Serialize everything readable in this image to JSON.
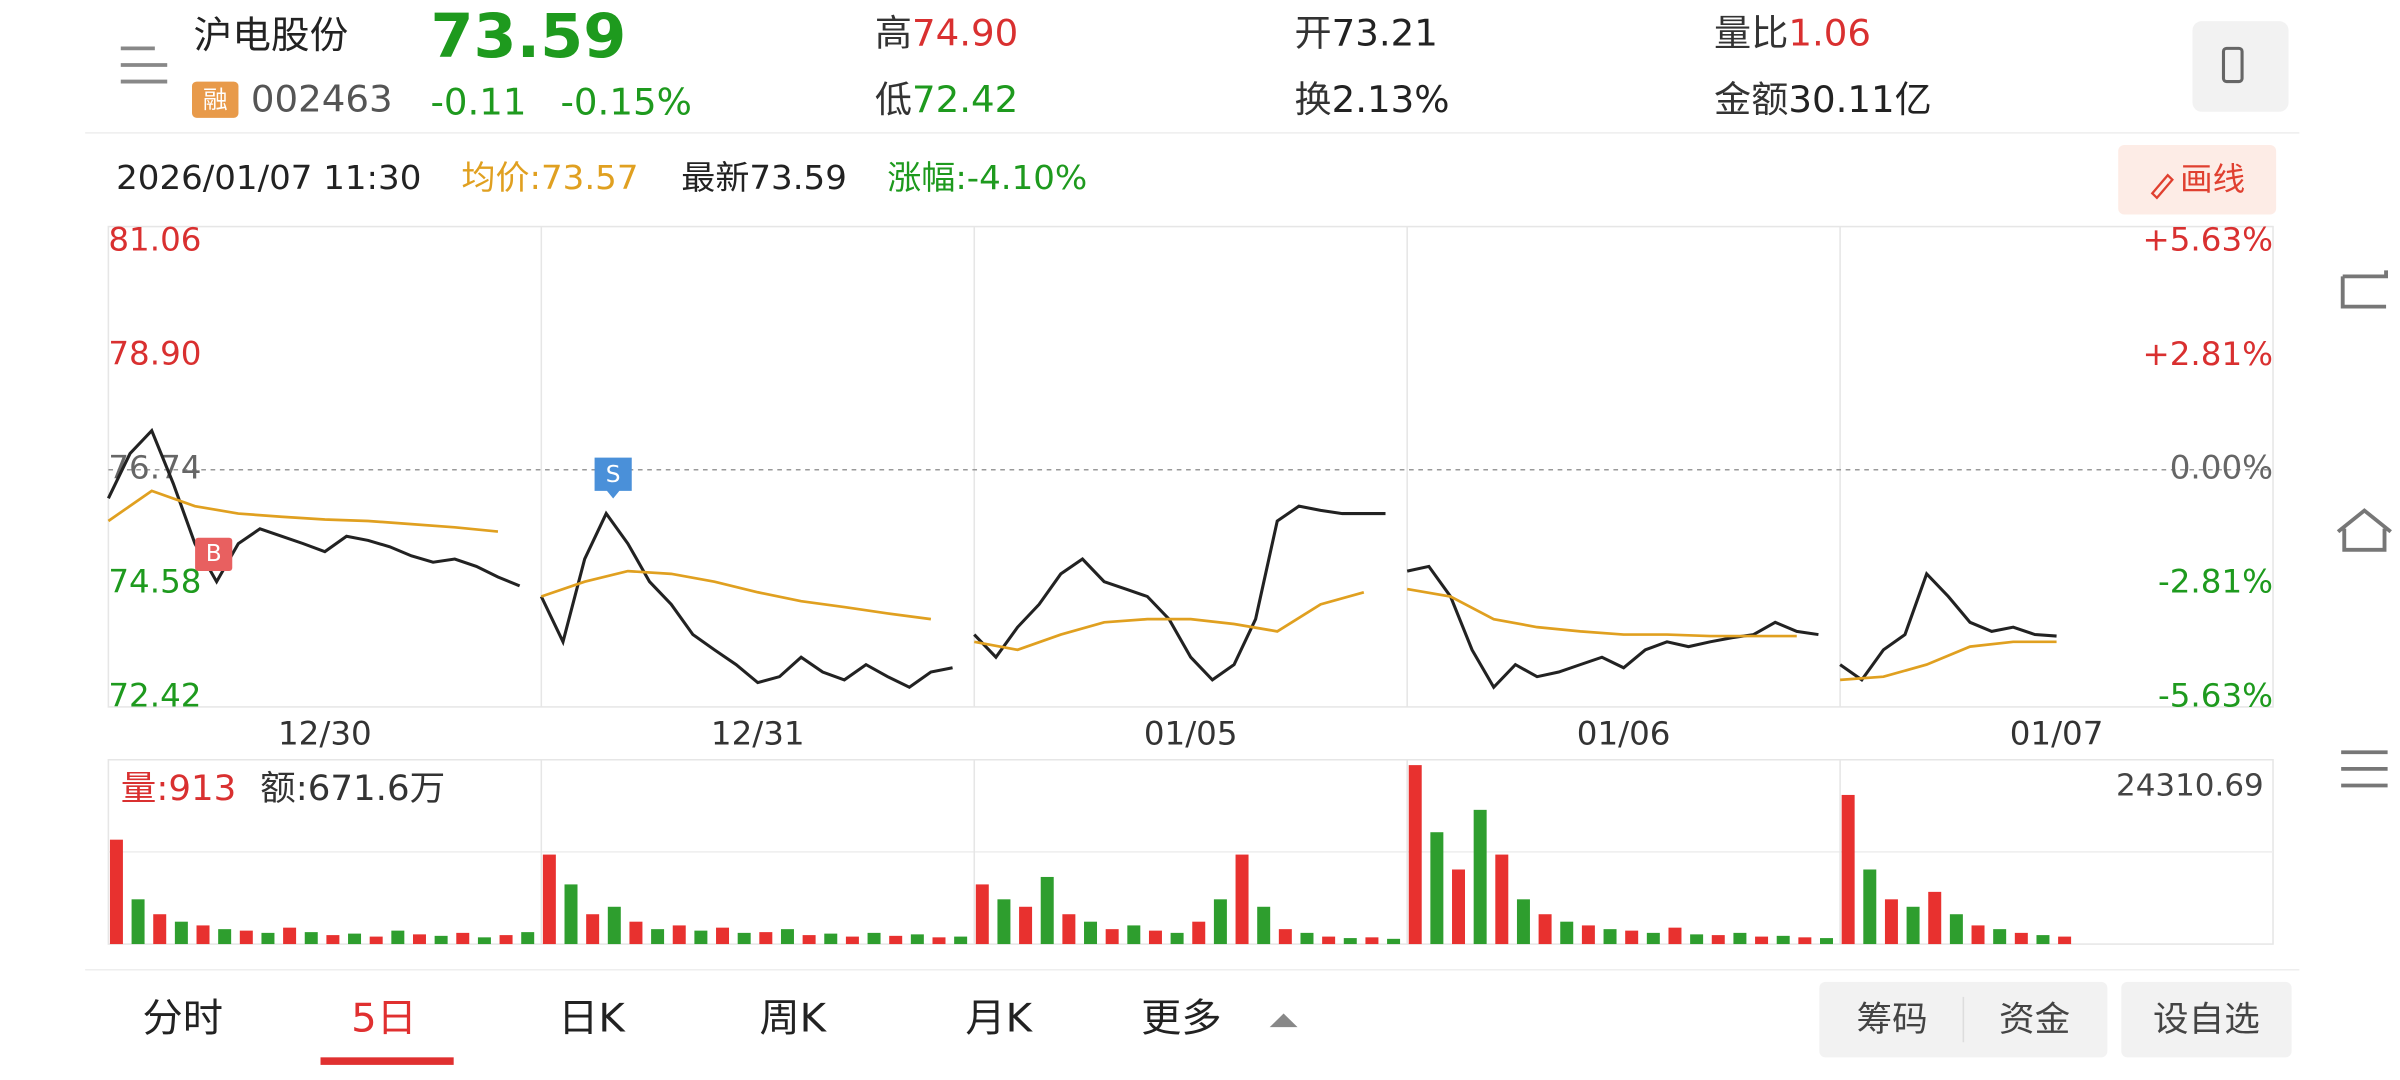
{
  "header": {
    "name": "沪电股份",
    "price": "73.59",
    "margin_badge": "融",
    "code": "002463",
    "change": "-0.11",
    "change_pct": "-0.15%",
    "stats": [
      {
        "label": "高",
        "value": "74.90",
        "color": "#d93030"
      },
      {
        "label": "开",
        "value": "73.21",
        "color": "#222222"
      },
      {
        "label": "量比",
        "value": "1.06",
        "color": "#d93030"
      },
      {
        "label": "低",
        "value": "72.42",
        "color": "#1e9a1e"
      },
      {
        "label": "换",
        "value": "2.13%",
        "color": "#222222"
      },
      {
        "label": "金额",
        "value": "30.11亿",
        "color": "#222222"
      }
    ]
  },
  "info_bar": {
    "time": "2026/01/07 11:30",
    "avg": "均价:73.57",
    "latest": "最新73.59",
    "change": "涨幅:-4.10%",
    "draw_button": "画线"
  },
  "trade_marks": [
    "S",
    "B"
  ],
  "chart_data": [
    {
      "type": "line",
      "xlim": [
        0,
        5
      ],
      "ylim": [
        72.42,
        81.06
      ],
      "yticks": [
        81.06,
        {
          "value": 78.9,
          "label": "78.90"
        },
        76.74,
        74.58,
        72.42
      ],
      "y2lim": [
        -5.63,
        5.63
      ],
      "y2ticks": [
        {
          "value": 5.63,
          "label": "+5.63%"
        },
        {
          "value": 2.81,
          "label": "+2.81%"
        },
        {
          "value": 0,
          "label": "0.00%"
        },
        {
          "value": -2.81,
          "label": "-2.81%"
        },
        {
          "value": -5.63,
          "label": "-5.63%"
        }
      ],
      "reference": 76.74,
      "xticks": [
        {
          "value": 0.5,
          "label": "12/30"
        },
        {
          "value": 1.5,
          "label": "12/31"
        },
        {
          "value": 2.5,
          "label": "01/05"
        },
        {
          "value": 3.5,
          "label": "01/06"
        },
        {
          "value": 4.5,
          "label": "01/07"
        }
      ],
      "up_color": "#d93030",
      "down_color": "#1e9a1e",
      "series": [
        {
          "color": "#222222",
          "x": [
            0,
            0.05,
            0.1,
            0.15,
            0.2,
            0.25,
            0.3,
            0.35,
            0.4,
            0.45,
            0.5,
            0.55,
            0.6,
            0.65,
            0.7,
            0.75,
            0.8,
            0.85,
            0.9,
            0.95,
            0.975,
            1,
            1.05,
            1.1,
            1.15,
            1.2,
            1.25,
            1.3,
            1.35,
            1.4,
            1.45,
            1.5,
            1.55,
            1.6,
            1.65,
            1.7,
            1.75,
            1.8,
            1.85,
            1.9,
            1.95,
            1.975,
            2,
            2.05,
            2.1,
            2.15,
            2.2,
            2.25,
            2.3,
            2.35,
            2.4,
            2.45,
            2.5,
            2.55,
            2.6,
            2.65,
            2.7,
            2.75,
            2.8,
            2.85,
            2.9,
            2.95,
            2.975,
            3,
            3.05,
            3.1,
            3.15,
            3.2,
            3.25,
            3.3,
            3.35,
            3.4,
            3.45,
            3.5,
            3.55,
            3.6,
            3.65,
            3.7,
            3.75,
            3.8,
            3.85,
            3.9,
            3.95,
            3.975,
            4,
            4.05,
            4.1,
            4.15,
            4.2,
            4.25,
            4.3,
            4.35,
            4.4,
            4.45,
            4.5
          ],
          "values": [
            76.2,
            77.05,
            77.48,
            76.48,
            75.34,
            74.62,
            75.34,
            75.62,
            75.48,
            75.34,
            75.19,
            75.48,
            75.4,
            75.28,
            75.11,
            74.99,
            75.05,
            74.91,
            74.71,
            74.54,
            null,
            74.34,
            73.48,
            75.05,
            75.91,
            75.34,
            74.62,
            74.19,
            73.62,
            73.33,
            73.05,
            72.71,
            72.82,
            73.19,
            72.91,
            72.76,
            73.05,
            72.82,
            72.62,
            72.91,
            72.99,
            null,
            73.62,
            73.19,
            73.76,
            74.19,
            74.77,
            75.05,
            74.62,
            74.48,
            74.34,
            73.91,
            73.19,
            72.76,
            73.05,
            73.91,
            75.77,
            76.05,
            75.97,
            75.91,
            75.91,
            75.91,
            null,
            74.82,
            74.91,
            74.34,
            73.33,
            72.62,
            73.05,
            72.82,
            72.91,
            73.05,
            73.19,
            72.99,
            73.33,
            73.48,
            73.39,
            73.48,
            73.56,
            73.62,
            73.85,
            73.68,
            73.62,
            null,
            73.05,
            72.76,
            73.33,
            73.62,
            74.77,
            74.34,
            73.85,
            73.68,
            73.76,
            73.62,
            73.59
          ]
        },
        {
          "color": "#e0a020",
          "x": [
            0,
            0.1,
            0.2,
            0.3,
            0.4,
            0.5,
            0.6,
            0.7,
            0.8,
            0.9,
            0.95,
            1,
            1.1,
            1.2,
            1.3,
            1.4,
            1.5,
            1.6,
            1.7,
            1.8,
            1.9,
            1.95,
            2,
            2.1,
            2.2,
            2.3,
            2.4,
            2.5,
            2.6,
            2.7,
            2.8,
            2.9,
            2.95,
            3,
            3.1,
            3.2,
            3.3,
            3.4,
            3.5,
            3.6,
            3.7,
            3.8,
            3.9,
            3.95,
            4,
            4.1,
            4.2,
            4.3,
            4.4,
            4.5
          ],
          "values": [
            75.77,
            76.34,
            76.05,
            75.91,
            75.85,
            75.8,
            75.77,
            75.71,
            75.65,
            75.57,
            null,
            74.34,
            74.62,
            74.82,
            74.77,
            74.62,
            74.42,
            74.25,
            74.14,
            74.02,
            73.91,
            null,
            73.48,
            73.33,
            73.62,
            73.85,
            73.91,
            73.91,
            73.82,
            73.68,
            74.19,
            74.42,
            null,
            74.48,
            74.34,
            73.91,
            73.76,
            73.68,
            73.62,
            73.62,
            73.59,
            73.59,
            73.59,
            null,
            72.76,
            72.82,
            73.05,
            73.39,
            73.48,
            73.48
          ]
        }
      ]
    },
    {
      "type": "bar",
      "xlim": [
        0,
        5
      ],
      "ylim": [
        0,
        24310.69
      ],
      "yticks": [
        24310.69
      ],
      "label_volume": "量:913",
      "label_amount": "额:671.6万",
      "colors": [
        "#e8312f",
        "#2e9e2e"
      ],
      "x": [
        0,
        0.05,
        0.1,
        0.15,
        0.2,
        0.25,
        0.3,
        0.35,
        0.4,
        0.45,
        0.5,
        0.55,
        0.6,
        0.65,
        0.7,
        0.75,
        0.8,
        0.85,
        0.9,
        0.95,
        1,
        1.05,
        1.1,
        1.15,
        1.2,
        1.25,
        1.3,
        1.35,
        1.4,
        1.45,
        1.5,
        1.55,
        1.6,
        1.65,
        1.7,
        1.75,
        1.8,
        1.85,
        1.9,
        1.95,
        2,
        2.05,
        2.1,
        2.15,
        2.2,
        2.25,
        2.3,
        2.35,
        2.4,
        2.45,
        2.5,
        2.55,
        2.6,
        2.65,
        2.7,
        2.75,
        2.8,
        2.85,
        2.9,
        2.95,
        3,
        3.05,
        3.1,
        3.15,
        3.2,
        3.25,
        3.3,
        3.35,
        3.4,
        3.45,
        3.5,
        3.55,
        3.6,
        3.65,
        3.7,
        3.75,
        3.8,
        3.85,
        3.9,
        3.95,
        4,
        4.05,
        4.1,
        4.15,
        4.2,
        4.25,
        4.3,
        4.35,
        4.4,
        4.45,
        4.5
      ],
      "values": [
        14000,
        6000,
        4000,
        3000,
        2500,
        2000,
        1800,
        1500,
        2200,
        1600,
        1200,
        1400,
        1000,
        1800,
        1300,
        1100,
        1500,
        900,
        1200,
        1600,
        12000,
        8000,
        4000,
        5000,
        3000,
        2000,
        2500,
        1800,
        2200,
        1500,
        1600,
        2000,
        1200,
        1400,
        1000,
        1500,
        1100,
        1300,
        900,
        1000,
        8000,
        6000,
        5000,
        9000,
        4000,
        3000,
        2000,
        2500,
        1800,
        1500,
        3000,
        6000,
        12000,
        5000,
        2000,
        1500,
        1000,
        800,
        900,
        700,
        24000,
        15000,
        10000,
        18000,
        12000,
        6000,
        4000,
        3000,
        2500,
        2000,
        1800,
        1500,
        2200,
        1300,
        1200,
        1500,
        1000,
        1100,
        900,
        800,
        20000,
        10000,
        6000,
        5000,
        7000,
        4000,
        2500,
        2000,
        1500,
        1200,
        1000
      ]
    }
  ],
  "tabs": [
    "分时",
    "5日",
    "日K",
    "周K",
    "月K",
    "更多"
  ],
  "buttons": [
    "筹码",
    "资金",
    "设自选"
  ]
}
